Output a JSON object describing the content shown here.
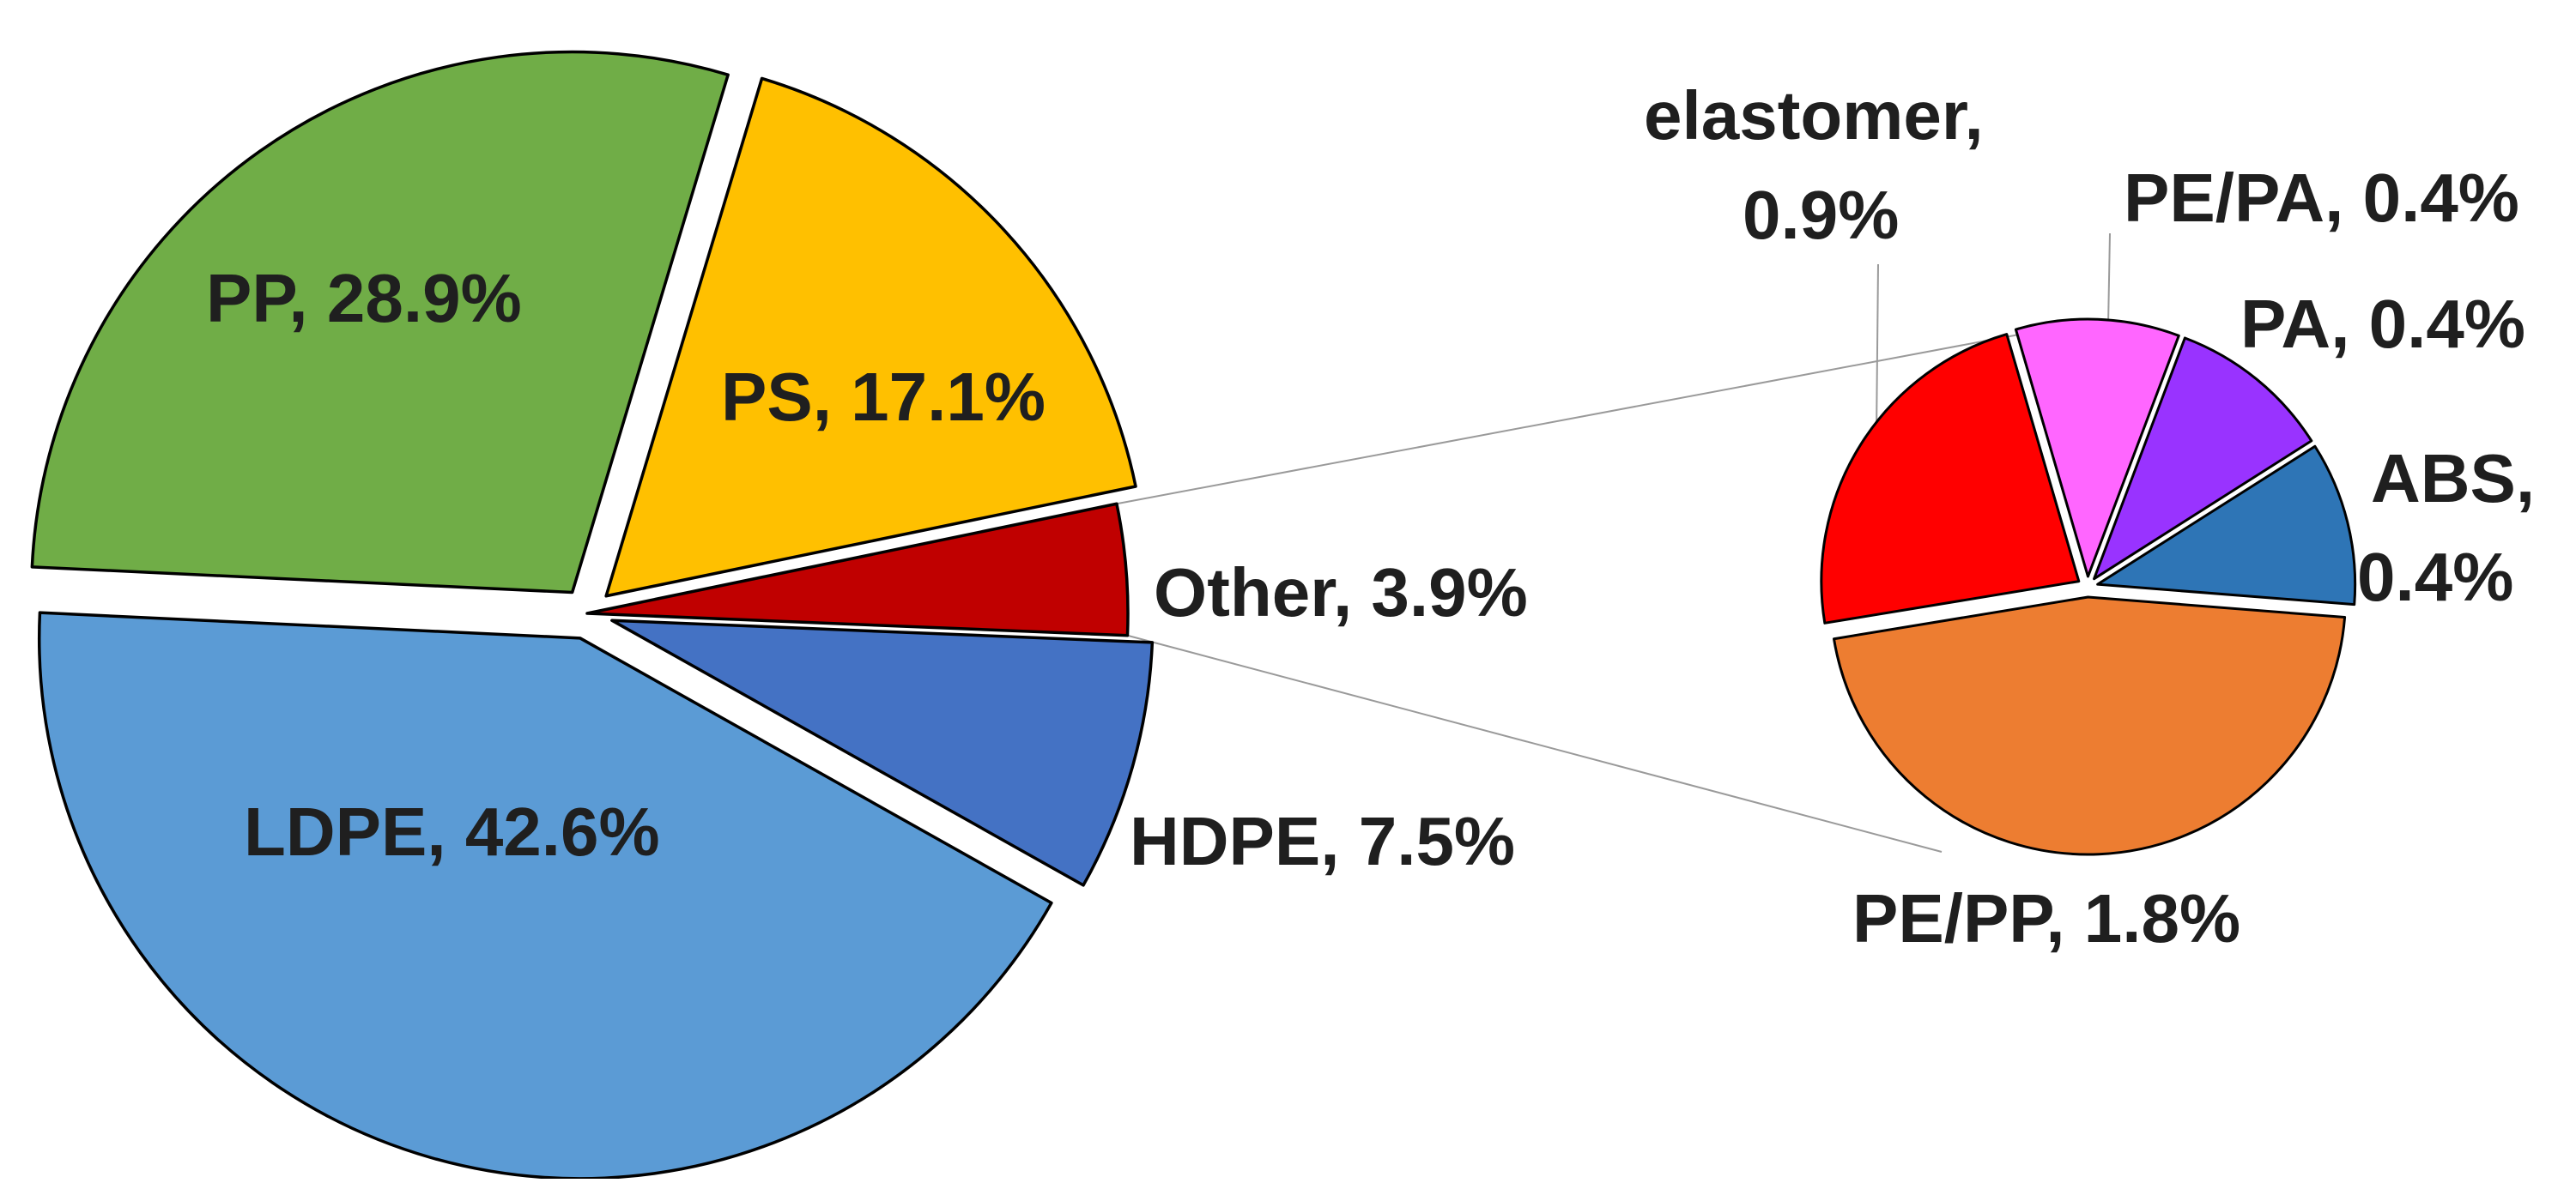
{
  "chart_data": {
    "type": "pie",
    "charts": [
      {
        "id": "main",
        "slices": [
          {
            "label": "LDPE",
            "value_text": "42.6%",
            "value": 42.6,
            "color": "#5b9bd5",
            "exploded": true
          },
          {
            "label": "PP",
            "value_text": "28.9%",
            "value": 28.9,
            "color": "#70ad47",
            "exploded": true
          },
          {
            "label": "PS",
            "value_text": "17.1%",
            "value": 17.1,
            "color": "#ffc000",
            "exploded": true
          },
          {
            "label": "Other",
            "value_text": "3.9%",
            "value": 3.9,
            "color": "#c00000",
            "exploded": false
          },
          {
            "label": "HDPE",
            "value_text": "7.5%",
            "value": 7.5,
            "color": "#4472c4",
            "exploded": true
          }
        ]
      },
      {
        "id": "breakdown-of-other",
        "slices": [
          {
            "label": "PE/PP",
            "value_text": "1.8%",
            "value": 1.8,
            "color": "#ed7d31"
          },
          {
            "label": "elastomer",
            "value_text": "0.9%",
            "value": 0.9,
            "color": "#ff0000"
          },
          {
            "label": "PE/PA",
            "value_text": "0.4%",
            "value": 0.4,
            "color": "#ff66ff"
          },
          {
            "label": "PA",
            "value_text": "0.4%",
            "value": 0.4,
            "color": "#9933ff"
          },
          {
            "label": "ABS",
            "value_text": "0.4%",
            "value": 0.4,
            "color": "#2e75b6"
          }
        ]
      }
    ],
    "title": "",
    "legend": "none"
  }
}
